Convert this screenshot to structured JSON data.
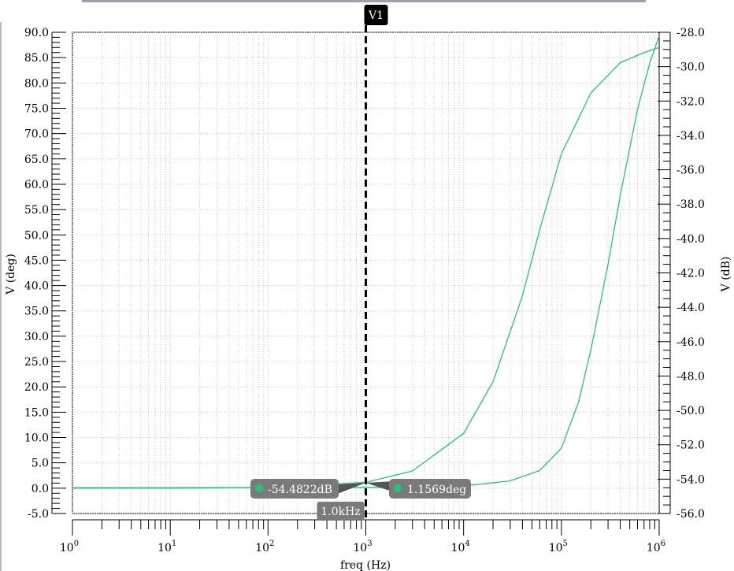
{
  "chart_data": {
    "type": "line",
    "title": "",
    "xlabel": "freq (Hz)",
    "ylabel_left": "V (deg)",
    "ylabel_right": "V (dB)",
    "x_scale": "log",
    "xlim": [
      1,
      1000000
    ],
    "ylim_left": [
      -5,
      90
    ],
    "ylim_right": [
      -56,
      -28
    ],
    "grid": true,
    "x_ticks": [
      {
        "value": 1,
        "base": "10",
        "exp": "0"
      },
      {
        "value": 10,
        "base": "10",
        "exp": "1"
      },
      {
        "value": 100,
        "base": "10",
        "exp": "2"
      },
      {
        "value": 1000,
        "base": "10",
        "exp": "3"
      },
      {
        "value": 10000,
        "base": "10",
        "exp": "4"
      },
      {
        "value": 100000,
        "base": "10",
        "exp": "5"
      },
      {
        "value": 1000000,
        "base": "10",
        "exp": "6"
      }
    ],
    "y_left_ticks": [
      "90.0",
      "85.0",
      "80.0",
      "75.0",
      "70.0",
      "65.0",
      "60.0",
      "55.0",
      "50.0",
      "45.0",
      "40.0",
      "35.0",
      "30.0",
      "25.0",
      "20.0",
      "15.0",
      "10.0",
      "5.0",
      "0.0",
      "-5.0"
    ],
    "y_right_ticks": [
      "-28.0",
      "-30.0",
      "-32.0",
      "-34.0",
      "-36.0",
      "-38.0",
      "-40.0",
      "-42.0",
      "-44.0",
      "-46.0",
      "-48.0",
      "-50.0",
      "-52.0",
      "-54.0",
      "-56.0"
    ],
    "series": [
      {
        "axis": "left",
        "color": "#22c47a",
        "points": [
          [
            1,
            0
          ],
          [
            10,
            0
          ],
          [
            100,
            0.1
          ],
          [
            1000,
            1.16
          ],
          [
            3000,
            3.4
          ],
          [
            10000,
            10.8
          ],
          [
            20000,
            21
          ],
          [
            40000,
            38
          ],
          [
            60000,
            51
          ],
          [
            100000,
            66
          ],
          [
            200000,
            78
          ],
          [
            400000,
            84
          ],
          [
            700000,
            86
          ],
          [
            1000000,
            87
          ]
        ]
      },
      {
        "axis": "right",
        "color": "#22c47a",
        "points": [
          [
            1,
            -54.5
          ],
          [
            10,
            -54.5
          ],
          [
            100,
            -54.49
          ],
          [
            1000,
            -54.48
          ],
          [
            3000,
            -54.47
          ],
          [
            10000,
            -54.4
          ],
          [
            30000,
            -54.1
          ],
          [
            60000,
            -53.5
          ],
          [
            100000,
            -52.2
          ],
          [
            150000,
            -49.5
          ],
          [
            200000,
            -46.5
          ],
          [
            300000,
            -41.5
          ],
          [
            400000,
            -37.5
          ],
          [
            600000,
            -32.5
          ],
          [
            800000,
            -29.8
          ],
          [
            1000000,
            -28.2
          ]
        ]
      }
    ],
    "cursor": {
      "name": "V1",
      "x_value": 1000,
      "x_label": "1.0kHz",
      "markers": [
        {
          "label": "-54.4822dB",
          "side": "left"
        },
        {
          "label": "1.1569deg",
          "side": "right"
        }
      ]
    }
  }
}
